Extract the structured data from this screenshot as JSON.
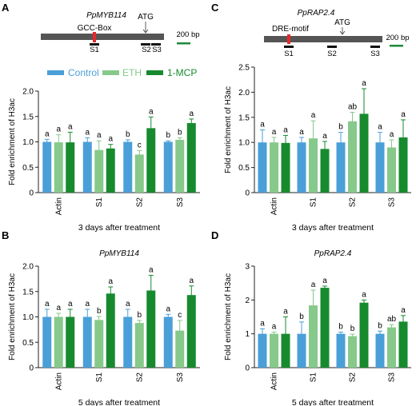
{
  "colors": {
    "control": "#4a9fd8",
    "eth": "#86c98a",
    "mcp": "#178a2e",
    "marker": "#e8262a",
    "scale": "#1d8a3a",
    "gene": "#555555"
  },
  "legend": {
    "control": "Control",
    "eth": "ETH",
    "mcp": "1-MCP"
  },
  "schematics": [
    {
      "gene": "PpMYB114",
      "motif": "GCC-Box",
      "atg": "ATG",
      "scale": "200 bp",
      "sites": [
        "S1",
        "S2",
        "S3"
      ]
    },
    {
      "gene": "PpRAP2.4",
      "motif": "DRE-motif",
      "atg": "ATG",
      "scale": "200 bp",
      "sites": [
        "S1",
        "S2",
        "S3"
      ]
    }
  ],
  "chart_data": [
    {
      "panel": "A",
      "type": "bar",
      "categories": [
        "Actin",
        "S1",
        "S2",
        "S3"
      ],
      "xlabel": "3 days after treatment",
      "ylabel": "Fold enrichment of H3ac",
      "ylim": [
        0,
        2.0
      ],
      "yticks": [
        "0",
        "0.5",
        "1.0",
        "1.5",
        "2.0"
      ],
      "series": [
        {
          "name": "Control",
          "values": [
            1.0,
            1.0,
            1.0,
            1.0
          ],
          "err": [
            0.05,
            0.08,
            0.04,
            0.02
          ],
          "letters": [
            "a",
            "a",
            "b",
            "b"
          ]
        },
        {
          "name": "ETH",
          "values": [
            0.99,
            0.84,
            0.75,
            1.04
          ],
          "err": [
            0.15,
            0.18,
            0.08,
            0.04
          ],
          "letters": [
            "a",
            "a",
            "c",
            "b"
          ]
        },
        {
          "name": "1-MCP",
          "values": [
            0.99,
            0.87,
            1.27,
            1.37
          ],
          "err": [
            0.2,
            0.08,
            0.22,
            0.08
          ],
          "letters": [
            "a",
            "a",
            "a",
            "a"
          ]
        }
      ]
    },
    {
      "panel": "B",
      "type": "bar",
      "title": "PpMYB114",
      "categories": [
        "Actin",
        "S1",
        "S2",
        "S3"
      ],
      "xlabel": "5 days after treatment",
      "ylabel": "Fold enrichment of H3ac",
      "ylim": [
        0,
        2.0
      ],
      "yticks": [
        "0",
        "0.5",
        "1.0",
        "1.5",
        "2.0"
      ],
      "series": [
        {
          "name": "Control",
          "values": [
            1.0,
            1.0,
            1.0,
            1.0
          ],
          "err": [
            0.15,
            0.15,
            0.15,
            0.05
          ],
          "letters": [
            "a",
            "a",
            "a",
            "a"
          ]
        },
        {
          "name": "ETH",
          "values": [
            1.0,
            0.94,
            0.88,
            0.73
          ],
          "err": [
            0.07,
            0.07,
            0.05,
            0.2
          ],
          "letters": [
            "a",
            "b",
            "b",
            "c"
          ]
        },
        {
          "name": "1-MCP",
          "values": [
            1.0,
            1.46,
            1.52,
            1.43
          ],
          "err": [
            0.15,
            0.13,
            0.3,
            0.18
          ],
          "letters": [
            "a",
            "a",
            "a",
            "a"
          ]
        }
      ]
    },
    {
      "panel": "C",
      "type": "bar",
      "categories": [
        "Actin",
        "S1",
        "S2",
        "S3"
      ],
      "xlabel": "3 days after treatment",
      "ylabel": "Fold enrichment of H3ac",
      "ylim": [
        0,
        2.5
      ],
      "yticks": [
        "0",
        "0.5",
        "1.0",
        "1.5",
        "2.0",
        "2.5"
      ],
      "series": [
        {
          "name": "Control",
          "values": [
            1.0,
            1.0,
            1.0,
            1.0
          ],
          "err": [
            0.25,
            0.1,
            0.2,
            0.2
          ],
          "letters": [
            "a",
            "a",
            "b",
            "a"
          ]
        },
        {
          "name": "ETH",
          "values": [
            1.0,
            1.08,
            1.42,
            0.9
          ],
          "err": [
            0.1,
            0.35,
            0.18,
            0.15
          ],
          "letters": [
            "a",
            "a",
            "ab",
            "a"
          ]
        },
        {
          "name": "1-MCP",
          "values": [
            0.99,
            0.87,
            1.57,
            1.1
          ],
          "err": [
            0.15,
            0.15,
            0.5,
            0.35
          ],
          "letters": [
            "a",
            "a",
            "a",
            "a"
          ]
        }
      ]
    },
    {
      "panel": "D",
      "type": "bar",
      "title": "PpRAP2.4",
      "categories": [
        "Actin",
        "S1",
        "S2",
        "S3"
      ],
      "xlabel": "5 days after treatment",
      "ylabel": "Fold enrichment of H3ac",
      "ylim": [
        0,
        3
      ],
      "yticks": [
        "0",
        "1",
        "2",
        "3"
      ],
      "series": [
        {
          "name": "Control",
          "values": [
            1.0,
            1.0,
            1.0,
            1.0
          ],
          "err": [
            0.15,
            0.35,
            0.05,
            0.08
          ],
          "letters": [
            "a",
            "b",
            "b",
            "b"
          ]
        },
        {
          "name": "ETH",
          "values": [
            1.0,
            1.84,
            0.93,
            1.19
          ],
          "err": [
            0.05,
            0.45,
            0.06,
            0.08
          ],
          "letters": [
            "a",
            "a",
            "b",
            "ab"
          ]
        },
        {
          "name": "1-MCP",
          "values": [
            1.0,
            2.36,
            1.92,
            1.36
          ],
          "err": [
            0.5,
            0.05,
            0.08,
            0.18
          ],
          "letters": [
            "a",
            "a",
            "a",
            "a"
          ]
        }
      ]
    }
  ]
}
